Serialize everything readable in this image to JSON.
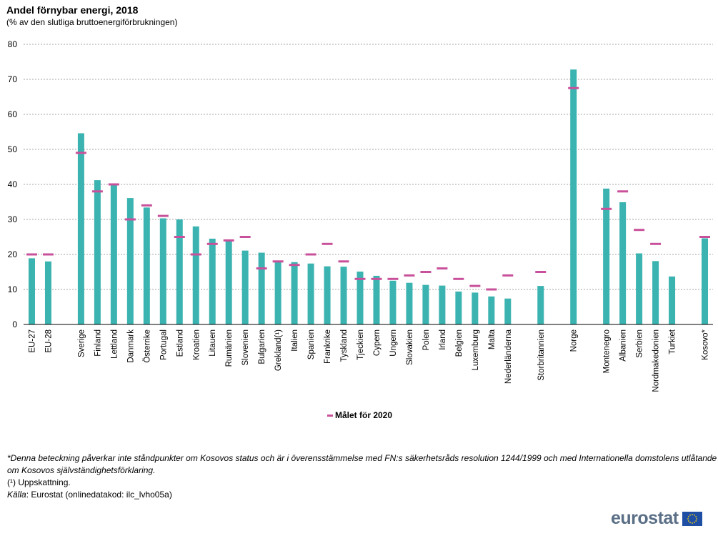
{
  "title": "Andel förnybar energi, 2018",
  "subtitle": "(% av den slutliga bruttoenergiförbrukningen)",
  "legend_label": "Målet för 2020",
  "footnote_kosovo": "*Denna beteckning påverkar inte ståndpunkter om Kosovos status och är i överensstämmelse med FN:s säkerhetsråds resolution 1244/1999 och med Internationella domstolens utlåtande om Kosovos självständighetsförklaring.",
  "footnote_estimate": "(¹) Uppskattning.",
  "source_label": "Källa",
  "source_text": ": Eurostat (onlinedatakod: ilc_lvho05a)",
  "logo_text": "eurostat",
  "colors": {
    "bar": "#3bb3b0",
    "target": "#c9519b",
    "grid": "#a6a6a6"
  },
  "chart_data": {
    "type": "bar",
    "title": "Andel förnybar energi, 2018",
    "ylabel": "% av den slutliga bruttoenergiförbrukningen",
    "ylim": [
      0,
      80
    ],
    "yticks": [
      0,
      10,
      20,
      30,
      40,
      50,
      60,
      70,
      80
    ],
    "gridlines": true,
    "legend_position": "bottom-center",
    "categories": [
      "EU-27",
      "EU-28",
      "",
      "Sverige",
      "Finland",
      "Lettland",
      "Danmark",
      "Österrike",
      "Portugal",
      "Estland",
      "Kroatien",
      "Litauen",
      "Rumänien",
      "Slovenien",
      "Bulgarien",
      "Grekland(¹)",
      "Italien",
      "Spanien",
      "Frankrike",
      "Tyskland",
      "Tjeckien",
      "Cypern",
      "Ungern",
      "Slovakien",
      "Polen",
      "Irland",
      "Belgien",
      "Luxemburg",
      "Malta",
      "Nederländerna",
      "",
      "Storbritannien",
      "",
      "Norge",
      "",
      "Montenegro",
      "Albanien",
      "Serbien",
      "Nordmakedonien",
      "Turkiet",
      "",
      "Kosovo*"
    ],
    "series": [
      {
        "name": "Andel förnybar energi 2018",
        "values": [
          18.9,
          18.0,
          null,
          54.6,
          41.2,
          40.3,
          36.1,
          33.4,
          30.3,
          30.0,
          28.0,
          24.5,
          23.9,
          21.1,
          20.5,
          18.0,
          17.8,
          17.4,
          16.6,
          16.5,
          15.1,
          13.9,
          12.5,
          11.9,
          11.3,
          11.1,
          9.4,
          9.1,
          8.0,
          7.4,
          null,
          11.0,
          null,
          72.8,
          null,
          38.8,
          34.9,
          20.3,
          18.1,
          13.7,
          null,
          24.6
        ]
      },
      {
        "name": "Målet för 2020",
        "values": [
          20,
          20,
          null,
          49,
          38,
          40,
          30,
          34,
          31,
          25,
          20,
          23,
          24,
          25,
          16,
          18,
          17,
          20,
          23,
          18,
          13,
          13,
          13,
          14,
          15,
          16,
          13,
          11,
          10,
          14,
          null,
          15,
          null,
          67.5,
          null,
          33,
          38,
          27,
          23,
          null,
          null,
          25
        ]
      }
    ]
  }
}
